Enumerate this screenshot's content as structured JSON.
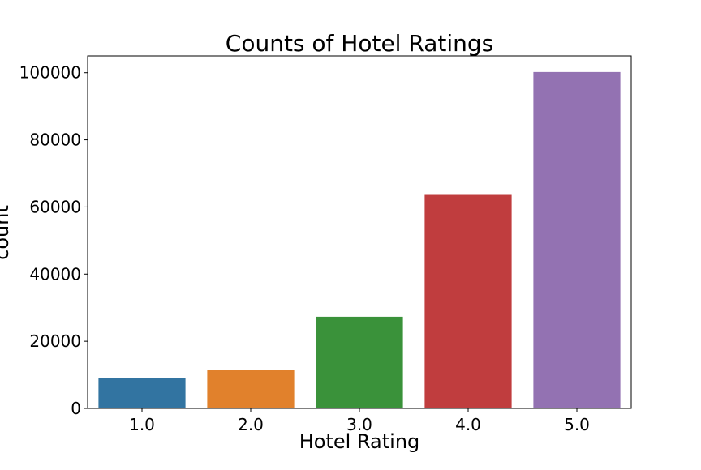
{
  "chart_data": {
    "type": "bar",
    "title": "Counts of Hotel Ratings",
    "xlabel": "Hotel Rating",
    "ylabel": "count",
    "categories": [
      "1.0",
      "2.0",
      "3.0",
      "4.0",
      "5.0"
    ],
    "values": [
      9100,
      11400,
      27300,
      63600,
      100200
    ],
    "colors": [
      "#3274a1",
      "#e1812c",
      "#3a923a",
      "#c03d3e",
      "#9372b2"
    ],
    "ylim": [
      0,
      105000
    ],
    "yticks": [
      0,
      20000,
      40000,
      60000,
      80000,
      100000
    ],
    "grid": false,
    "legend": "none"
  }
}
